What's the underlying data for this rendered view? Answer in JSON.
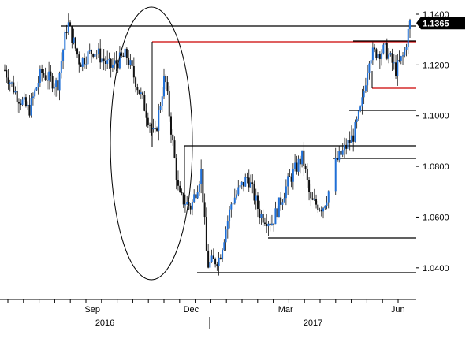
{
  "chart_data": {
    "type": "candlestick",
    "ylim": [
      1.03,
      1.14
    ],
    "yticks": [
      "1.1400",
      "1.1200",
      "1.1000",
      "1.0800",
      "1.0600",
      "1.0400"
    ],
    "ytick_values": [
      1.14,
      1.12,
      1.1,
      1.08,
      1.06,
      1.04
    ],
    "last_price_label": "1.1365",
    "last_price": 1.1365,
    "x_months": [
      "Sep",
      "Dec",
      "Mar",
      "Jun"
    ],
    "x_month_positions": [
      0.222,
      0.459,
      0.686,
      0.956
    ],
    "x_years": [
      "2016",
      "2017"
    ],
    "x_year_positions": [
      0.252,
      0.752
    ],
    "gap_anchors": [
      [
        0,
        1.118
      ],
      [
        0.03,
        1.108
      ],
      [
        0.06,
        1.102
      ],
      [
        0.09,
        1.117
      ],
      [
        0.13,
        1.112
      ],
      [
        0.155,
        1.137
      ],
      [
        0.185,
        1.121
      ],
      [
        0.22,
        1.126
      ],
      [
        0.26,
        1.119
      ],
      [
        0.3,
        1.124
      ],
      [
        0.34,
        1.106
      ],
      [
        0.37,
        1.091
      ],
      [
        0.395,
        1.116
      ],
      [
        0.43,
        1.068
      ],
      [
        0.46,
        1.064
      ],
      [
        0.485,
        1.078
      ],
      [
        0.5,
        1.041
      ],
      [
        0.53,
        1.044
      ],
      [
        0.56,
        1.066
      ],
      [
        0.6,
        1.076
      ],
      [
        0.63,
        1.061
      ],
      [
        0.66,
        1.058
      ],
      [
        0.7,
        1.074
      ],
      [
        0.735,
        1.084
      ],
      [
        0.755,
        1.066
      ],
      [
        0.785,
        1.064
      ],
      [
        0.81,
        1.075
      ],
      [
        0.815,
        1.081
      ],
      [
        0.86,
        1.092
      ],
      [
        0.88,
        1.103
      ],
      [
        0.9,
        1.124
      ],
      [
        0.94,
        1.126
      ],
      [
        0.965,
        1.118
      ],
      [
        0.985,
        1.124
      ],
      [
        1.0,
        1.1365
      ]
    ],
    "gap_start": 0.8,
    "gap_end": 0.815
  }
}
